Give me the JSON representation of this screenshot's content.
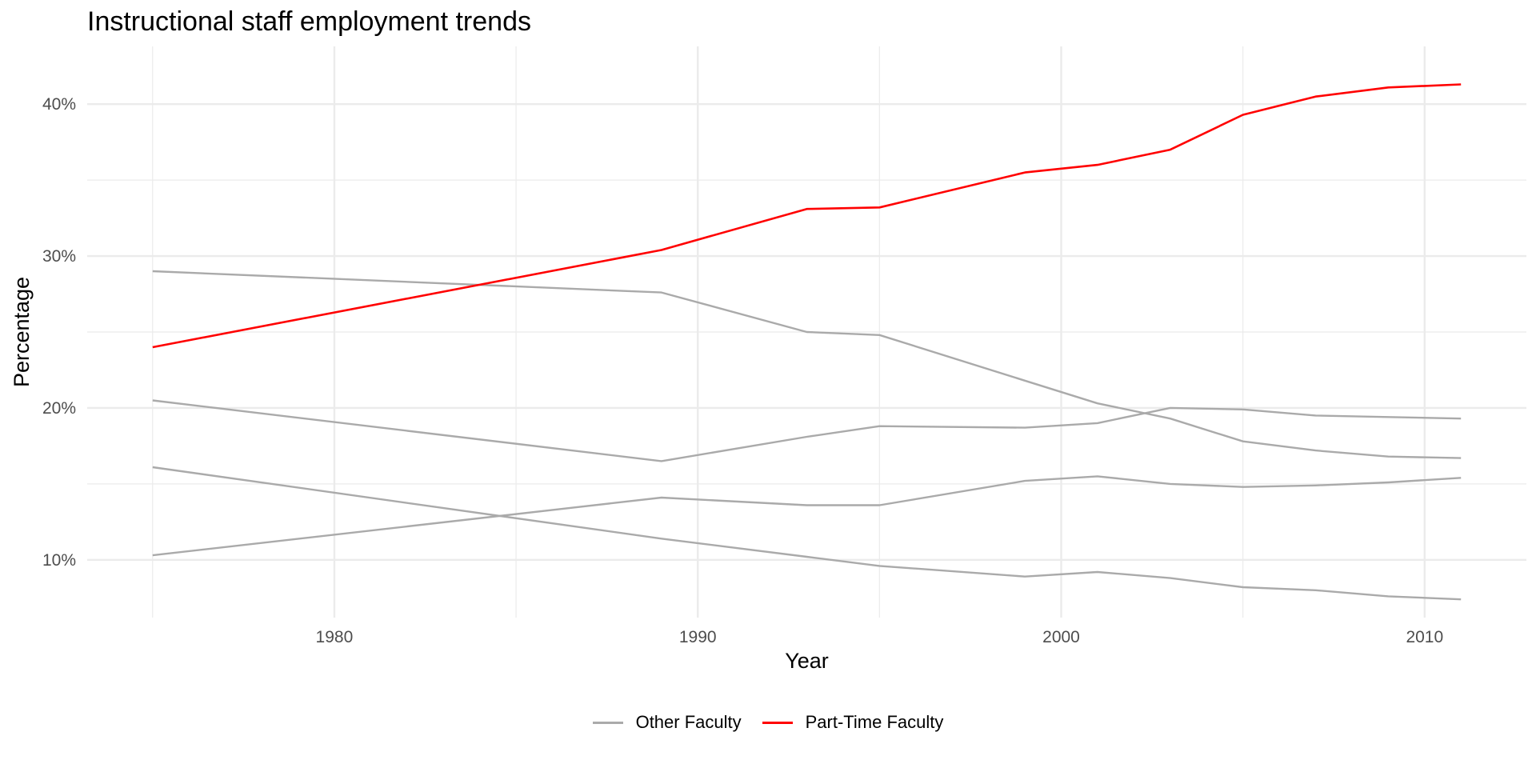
{
  "chart_data": {
    "type": "line",
    "title": "Instructional staff employment trends",
    "xlabel": "Year",
    "ylabel": "Percentage",
    "xlim": [
      1973.2,
      2012.8
    ],
    "ylim": [
      6.2,
      43.8
    ],
    "x_ticks": [
      1980,
      1990,
      2000,
      2010
    ],
    "x_tick_labels": [
      "1980",
      "1990",
      "2000",
      "2010"
    ],
    "y_ticks": [
      10,
      20,
      30,
      40
    ],
    "y_tick_labels": [
      "10%",
      "20%",
      "30%",
      "40%"
    ],
    "grid": true,
    "legend_position": "bottom",
    "colors": {
      "other": "#aaaaaa",
      "highlight": "#ff0000",
      "grid": "#ebebeb"
    },
    "x": [
      1975,
      1989,
      1993,
      1995,
      1999,
      2001,
      2003,
      2005,
      2007,
      2009,
      2011
    ],
    "series": [
      {
        "legend": "Other Faculty",
        "color": "#aaaaaa",
        "values": [
          29.0,
          27.6,
          25.0,
          24.8,
          21.8,
          20.3,
          19.3,
          17.8,
          17.2,
          16.8,
          16.7
        ]
      },
      {
        "legend": "Other Faculty",
        "color": "#aaaaaa",
        "values": [
          20.5,
          16.5,
          18.1,
          18.8,
          18.7,
          19.0,
          20.0,
          19.9,
          19.5,
          19.4,
          19.3
        ]
      },
      {
        "legend": "Other Faculty",
        "color": "#aaaaaa",
        "values": [
          10.3,
          14.1,
          13.6,
          13.6,
          15.2,
          15.5,
          15.0,
          14.8,
          14.9,
          15.1,
          15.4
        ]
      },
      {
        "legend": "Other Faculty",
        "color": "#aaaaaa",
        "values": [
          16.1,
          11.4,
          10.2,
          9.6,
          8.9,
          9.2,
          8.8,
          8.2,
          8.0,
          7.6,
          7.4
        ]
      },
      {
        "legend": "Part-Time Faculty",
        "color": "#ff0000",
        "values": [
          24.0,
          30.4,
          33.1,
          33.2,
          35.5,
          36.0,
          37.0,
          39.3,
          40.5,
          41.1,
          41.3
        ]
      }
    ],
    "legend_entries": [
      {
        "label": "Other Faculty",
        "color": "#aaaaaa"
      },
      {
        "label": "Part-Time Faculty",
        "color": "#ff0000"
      }
    ]
  }
}
